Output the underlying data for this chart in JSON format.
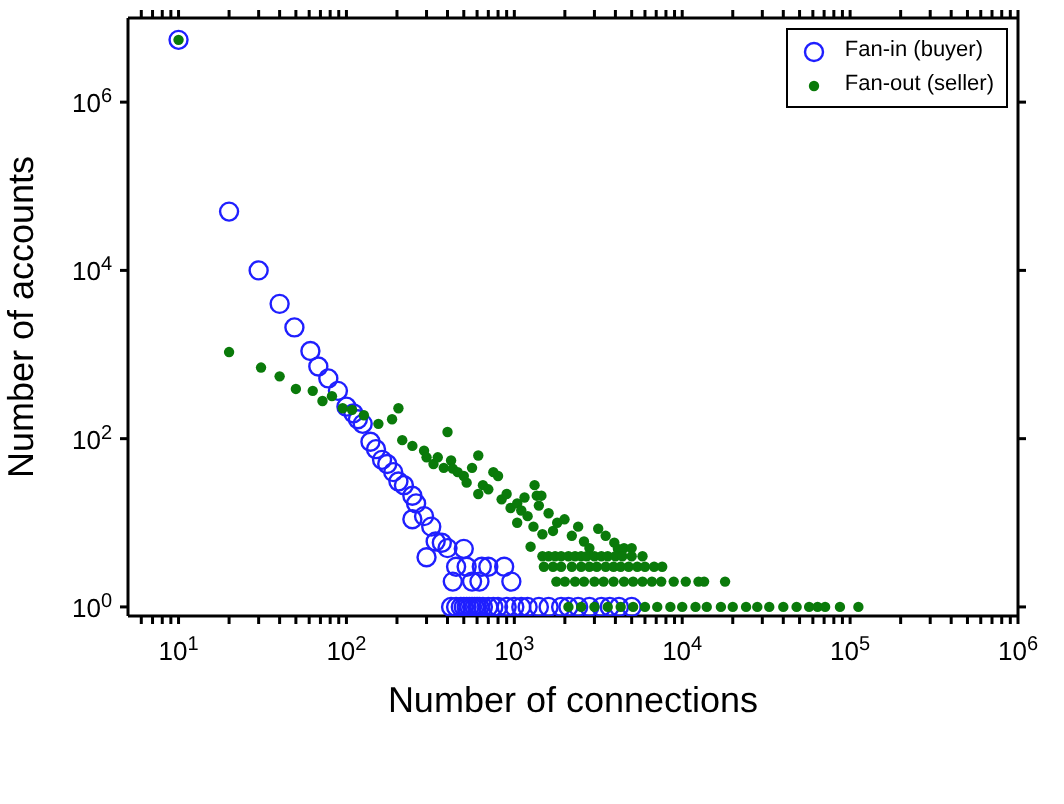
{
  "chart_data": {
    "type": "scatter",
    "xlabel": "Number of connections",
    "ylabel": "Number of accounts",
    "log": "xy",
    "xlim": [
      5,
      1000000
    ],
    "ylim": [
      0.78,
      10000000
    ],
    "xticks": [
      {
        "value": 6,
        "label": null
      },
      {
        "value": 7,
        "label": null
      },
      {
        "value": 8,
        "label": null
      },
      {
        "value": 9,
        "label": null
      },
      {
        "value": 10,
        "label": "10$^{1}$"
      },
      {
        "value": 20,
        "label": null
      },
      {
        "value": 30,
        "label": null
      },
      {
        "value": 40,
        "label": null
      },
      {
        "value": 50,
        "label": null
      },
      {
        "value": 60,
        "label": null
      },
      {
        "value": 70,
        "label": null
      },
      {
        "value": 80,
        "label": null
      },
      {
        "value": 90,
        "label": null
      },
      {
        "value": 100,
        "label": "10$^{2}$"
      },
      {
        "value": 200,
        "label": null
      },
      {
        "value": 300,
        "label": null
      },
      {
        "value": 400,
        "label": null
      },
      {
        "value": 500,
        "label": null
      },
      {
        "value": 600,
        "label": null
      },
      {
        "value": 700,
        "label": null
      },
      {
        "value": 800,
        "label": null
      },
      {
        "value": 900,
        "label": null
      },
      {
        "value": 1000,
        "label": "10$^{3}$"
      },
      {
        "value": 2000,
        "label": null
      },
      {
        "value": 3000,
        "label": null
      },
      {
        "value": 4000,
        "label": null
      },
      {
        "value": 5000,
        "label": null
      },
      {
        "value": 6000,
        "label": null
      },
      {
        "value": 7000,
        "label": null
      },
      {
        "value": 8000,
        "label": null
      },
      {
        "value": 9000,
        "label": null
      },
      {
        "value": 10000,
        "label": "10$^{4}$"
      },
      {
        "value": 20000,
        "label": null
      },
      {
        "value": 30000,
        "label": null
      },
      {
        "value": 40000,
        "label": null
      },
      {
        "value": 50000,
        "label": null
      },
      {
        "value": 60000,
        "label": null
      },
      {
        "value": 70000,
        "label": null
      },
      {
        "value": 80000,
        "label": null
      },
      {
        "value": 90000,
        "label": null
      },
      {
        "value": 100000,
        "label": "10$^{5}$"
      },
      {
        "value": 200000,
        "label": null
      },
      {
        "value": 300000,
        "label": null
      },
      {
        "value": 400000,
        "label": null
      },
      {
        "value": 500000,
        "label": null
      },
      {
        "value": 600000,
        "label": null
      },
      {
        "value": 700000,
        "label": null
      },
      {
        "value": 800000,
        "label": null
      },
      {
        "value": 900000,
        "label": null
      },
      {
        "value": 1000000,
        "label": "10$^{6}$"
      }
    ],
    "yticks": [
      {
        "value": 1,
        "label": "10$^{0}$"
      },
      {
        "value": 100,
        "label": "10$^{2}$"
      },
      {
        "value": 10000,
        "label": "10$^{4}$"
      },
      {
        "value": 1000000,
        "label": "10$^{6}$"
      }
    ],
    "marker": "circle",
    "legend": "top right",
    "series": [
      {
        "name": "Fan-in (buyer)",
        "color": "#1f1fff",
        "x": [
          10,
          20,
          30,
          40,
          49,
          61,
          68,
          78,
          89,
          100,
          110,
          117,
          125,
          139,
          150,
          163,
          175,
          190,
          204,
          220,
          247,
          260,
          290,
          247,
          320,
          340,
          370,
          300,
          400,
          450,
          500,
          520,
          560,
          640,
          620,
          700,
          870,
          430,
          960,
          420,
          450,
          480,
          500,
          520,
          540,
          560,
          580,
          600,
          620,
          650,
          700,
          750,
          800,
          900,
          1000,
          1100,
          1200,
          1400,
          1600,
          1900,
          2100,
          2400,
          2800,
          3300,
          3700,
          4200,
          5000
        ],
        "values": [
          5500000,
          50000,
          10000,
          4000,
          2100,
          1100,
          720,
          520,
          370,
          240,
          200,
          170,
          150,
          92,
          75,
          56,
          50,
          40,
          31,
          28,
          21,
          17,
          12,
          11,
          9,
          6,
          5.8,
          3.9,
          5,
          3,
          4.9,
          3,
          2,
          3,
          2,
          3,
          3,
          2,
          2,
          1,
          1,
          1,
          1,
          1,
          1,
          1,
          1,
          1,
          1,
          1,
          1,
          1,
          1,
          1,
          1,
          1,
          1,
          1,
          1,
          1,
          1,
          1,
          1,
          1,
          1,
          1,
          1
        ]
      },
      {
        "name": "Fan-out (seller)",
        "color": "#0a7a0a",
        "x": [
          10,
          20,
          31,
          40,
          50,
          63,
          72,
          82,
          95,
          108,
          127,
          155,
          187,
          204,
          215,
          247,
          290,
          300,
          330,
          350,
          380,
          400,
          420,
          430,
          460,
          500,
          520,
          560,
          610,
          610,
          650,
          700,
          750,
          800,
          840,
          900,
          950,
          1040,
          1040,
          1100,
          1150,
          1200,
          1250,
          1300,
          1320,
          1360,
          1400,
          1450,
          1470,
          1600,
          1700,
          1800,
          1990,
          2200,
          2400,
          2600,
          2800,
          3160,
          3500,
          3940,
          4140,
          4500,
          5000,
          1470,
          1600,
          1750,
          1900,
          2100,
          2300,
          2500,
          2700,
          3000,
          3300,
          3600,
          4000,
          4400,
          5000,
          5800,
          1500,
          1700,
          1900,
          2200,
          2500,
          2800,
          3100,
          3500,
          3900,
          4300,
          4800,
          5400,
          6000,
          6800,
          7600,
          1780,
          2000,
          2300,
          2600,
          3000,
          3400,
          3900,
          4500,
          5100,
          5800,
          6600,
          7500,
          8900,
          10500,
          12500,
          13500,
          18000,
          2100,
          2500,
          3000,
          3600,
          4300,
          5100,
          6000,
          7100,
          8500,
          10000,
          12000,
          14000,
          17000,
          20000,
          24000,
          28000,
          33000,
          40000,
          48000,
          57000,
          64000,
          71000,
          87000,
          112000
        ],
        "values": [
          5500000,
          1070,
          700,
          550,
          390,
          370,
          280,
          320,
          230,
          220,
          190,
          150,
          170,
          230,
          96,
          82,
          72,
          60,
          50,
          60,
          45,
          120,
          55,
          44,
          40,
          36,
          30,
          45,
          63,
          22,
          28,
          25,
          40,
          36,
          19,
          22,
          15,
          17,
          10,
          14,
          20,
          12,
          5.2,
          9,
          28,
          21,
          16,
          21,
          7.3,
          13,
          8,
          10,
          11,
          7,
          9,
          6,
          5,
          8.5,
          7,
          5.8,
          4.9,
          5,
          5,
          4,
          4,
          4,
          4,
          4,
          4,
          4,
          4,
          4,
          4,
          4,
          4,
          4,
          4,
          4,
          3,
          3,
          3,
          3,
          3,
          3,
          3,
          3,
          3,
          3,
          3,
          3,
          3,
          3,
          3,
          2,
          2,
          2,
          2,
          2,
          2,
          2,
          2,
          2,
          2,
          2,
          2,
          2,
          2,
          2,
          2,
          2,
          1,
          1,
          1,
          1,
          1,
          1,
          1,
          1,
          1,
          1,
          1,
          1,
          1,
          1,
          1,
          1,
          1,
          1,
          1,
          1,
          1,
          1,
          1,
          1
        ]
      }
    ]
  }
}
